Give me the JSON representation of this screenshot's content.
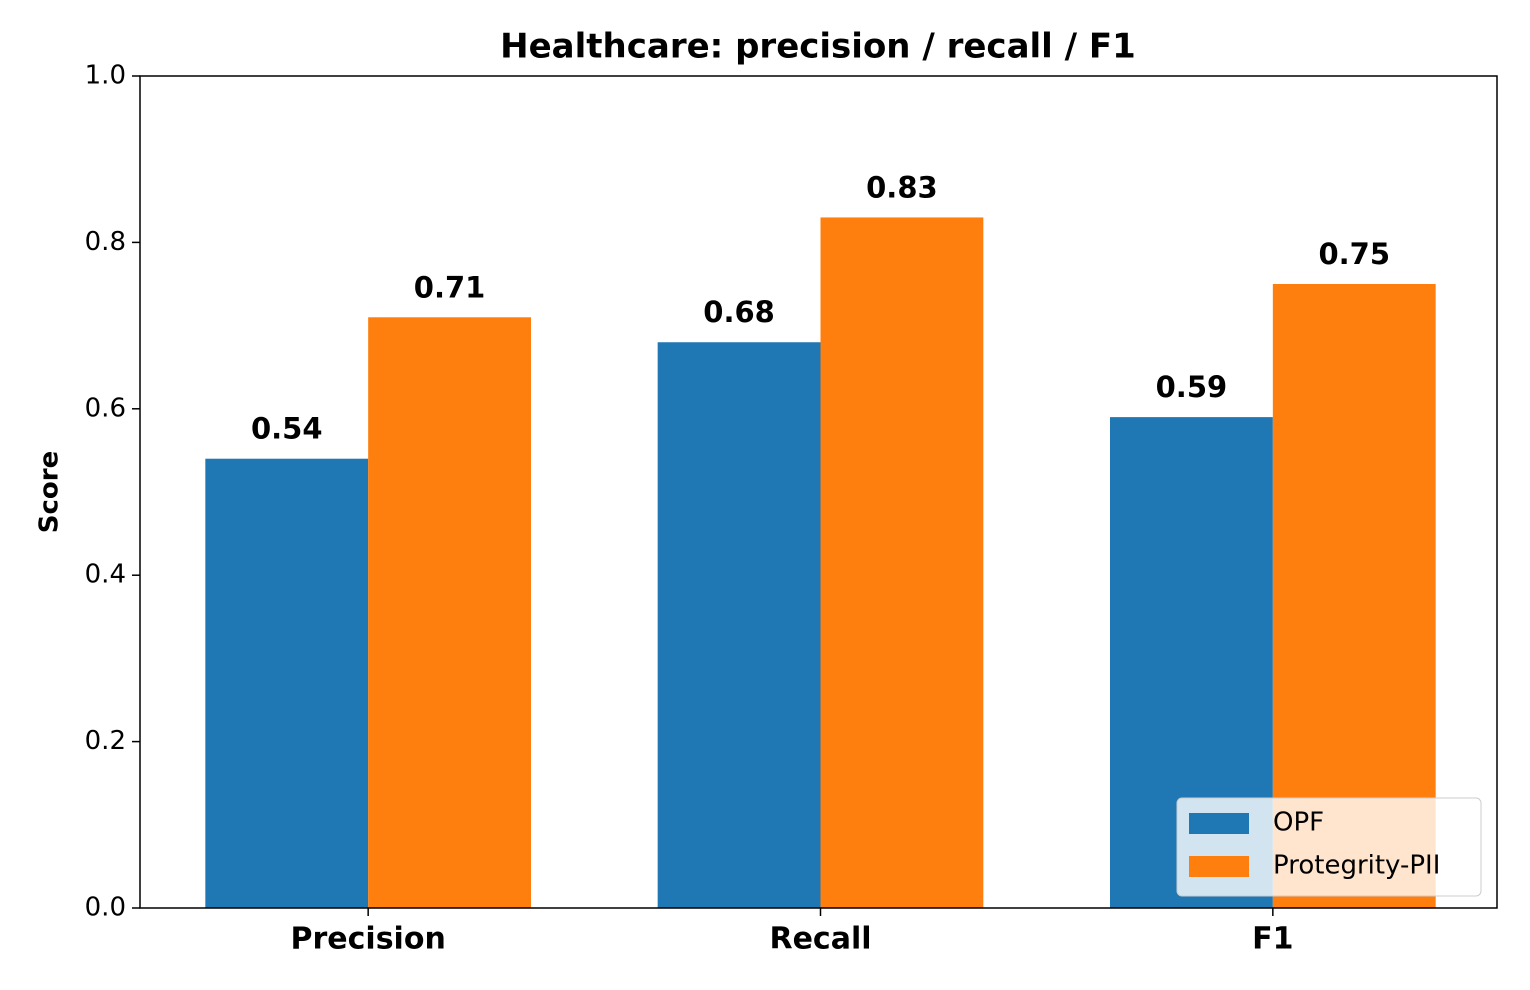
{
  "chart_data": {
    "type": "bar",
    "title": "Healthcare: precision / recall / F1",
    "y_label": "Score",
    "categories": [
      "Precision",
      "Recall",
      "F1"
    ],
    "series": [
      {
        "name": "OPF",
        "color": "#1f77b4",
        "values": [
          0.54,
          0.68,
          0.59
        ]
      },
      {
        "name": "Protegrity-PII",
        "color": "#ff7f0e",
        "values": [
          0.71,
          0.83,
          0.75
        ]
      }
    ],
    "ylim": [
      0,
      1
    ],
    "yticks": [
      {
        "value": 0,
        "label": "0.0"
      },
      0.2,
      0.4,
      0.6,
      0.8,
      {
        "value": 1,
        "label": "1.0"
      }
    ],
    "grid": false,
    "legend": "lower right"
  }
}
